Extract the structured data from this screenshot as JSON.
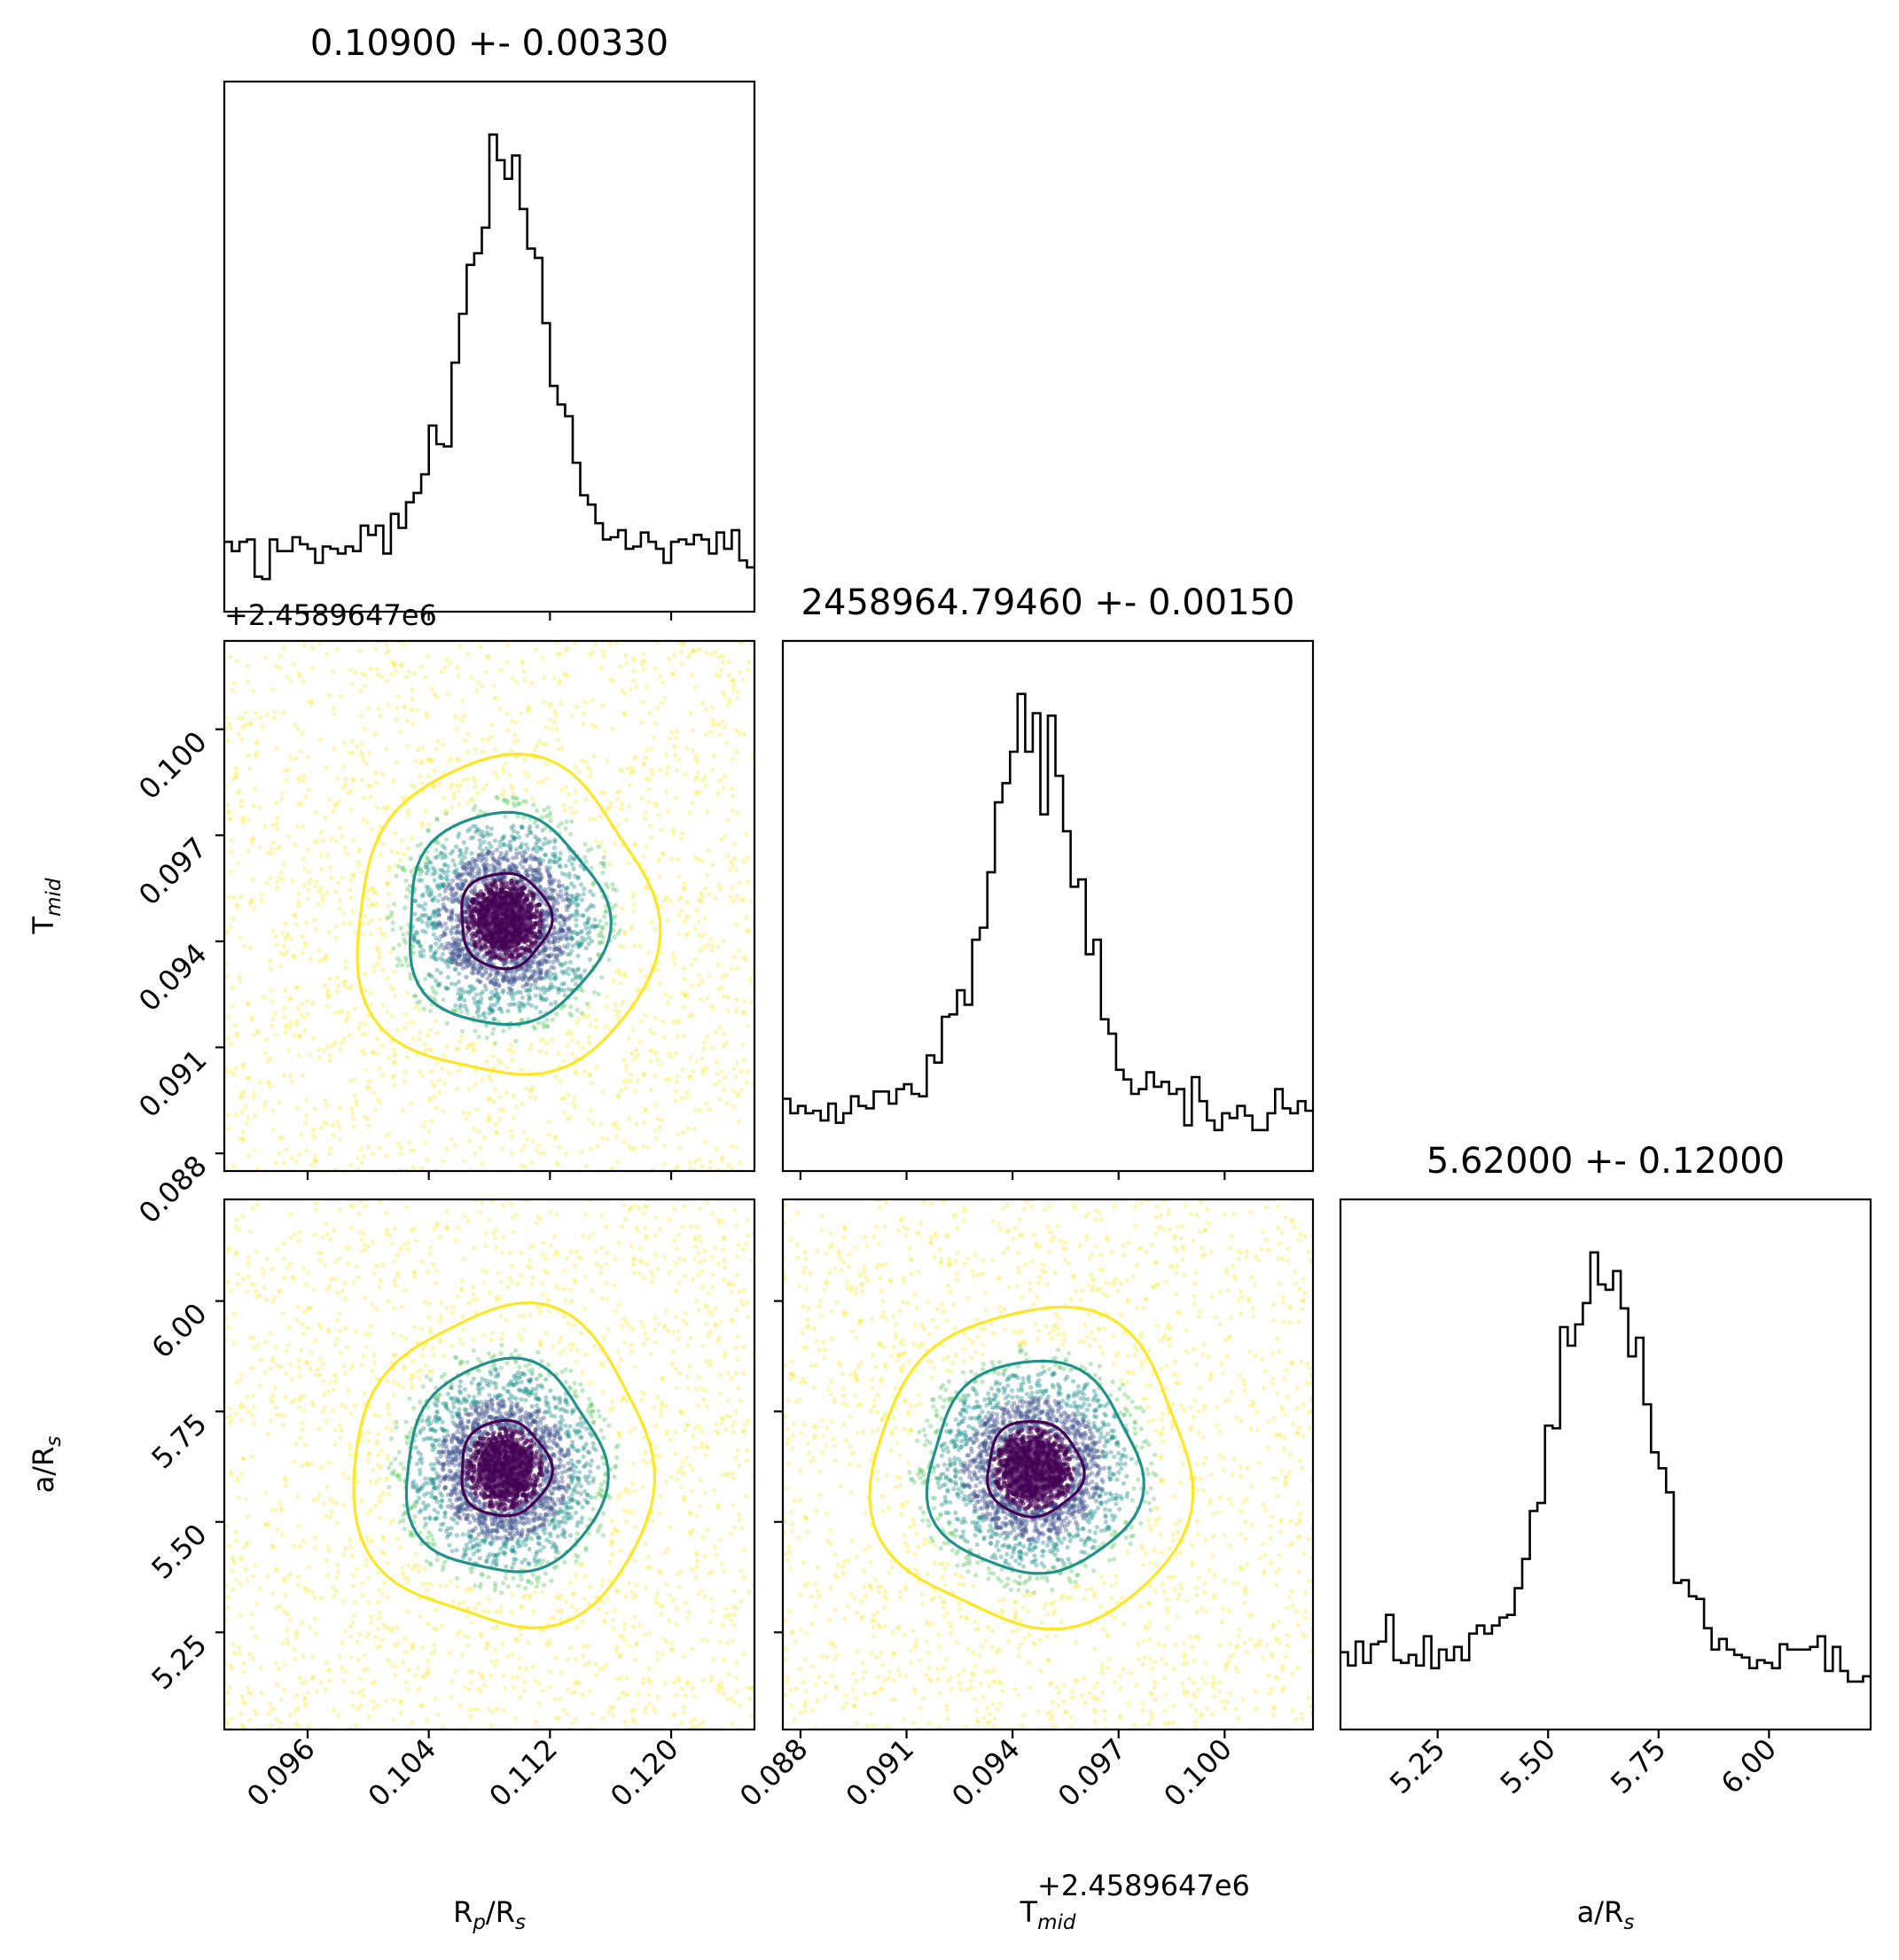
{
  "chart_data": {
    "type": "corner",
    "parameters": [
      {
        "key": "rp",
        "axis_label_main": "R",
        "axis_label_sub1": "p",
        "axis_label_mid": "/R",
        "axis_label_sub2": "s",
        "title": "0.10900 +- 0.00330",
        "range": [
          0.0905,
          0.1255
        ],
        "ticks": [
          0.096,
          0.104,
          0.112,
          0.12
        ],
        "tick_labels": [
          "0.096",
          "0.104",
          "0.112",
          "0.120"
        ],
        "offset_label": "",
        "median": 0.109,
        "sigma": 0.0033
      },
      {
        "key": "tmid",
        "axis_label_main": "T",
        "axis_label_sub1": "mid",
        "axis_label_mid": "",
        "axis_label_sub2": "",
        "title": "2458964.79460 +- 0.00150",
        "range": [
          0.0875,
          0.1025
        ],
        "ticks": [
          0.088,
          0.091,
          0.094,
          0.097,
          0.1
        ],
        "tick_labels": [
          "0.088",
          "0.091",
          "0.094",
          "0.097",
          "0.100"
        ],
        "offset_label": "+2.4589647e6",
        "median": 0.0946,
        "sigma": 0.0015
      },
      {
        "key": "ars",
        "axis_label_main": "a",
        "axis_label_sub1": "",
        "axis_label_mid": "/R",
        "axis_label_sub2": "s",
        "title": "5.62000 +- 0.12000",
        "range": [
          5.03,
          6.23
        ],
        "ticks": [
          5.25,
          5.5,
          5.75,
          6.0
        ],
        "tick_labels": [
          "5.25",
          "5.50",
          "5.75",
          "6.00"
        ],
        "offset_label": "",
        "median": 5.62,
        "sigma": 0.12
      }
    ],
    "column0_offset_label": "+2.4589647e6",
    "contour_colors": [
      "#440154",
      "#21918c",
      "#fde725"
    ],
    "point_colors": [
      "#440154",
      "#3b528b",
      "#21918c",
      "#5ec962",
      "#fde725"
    ]
  }
}
